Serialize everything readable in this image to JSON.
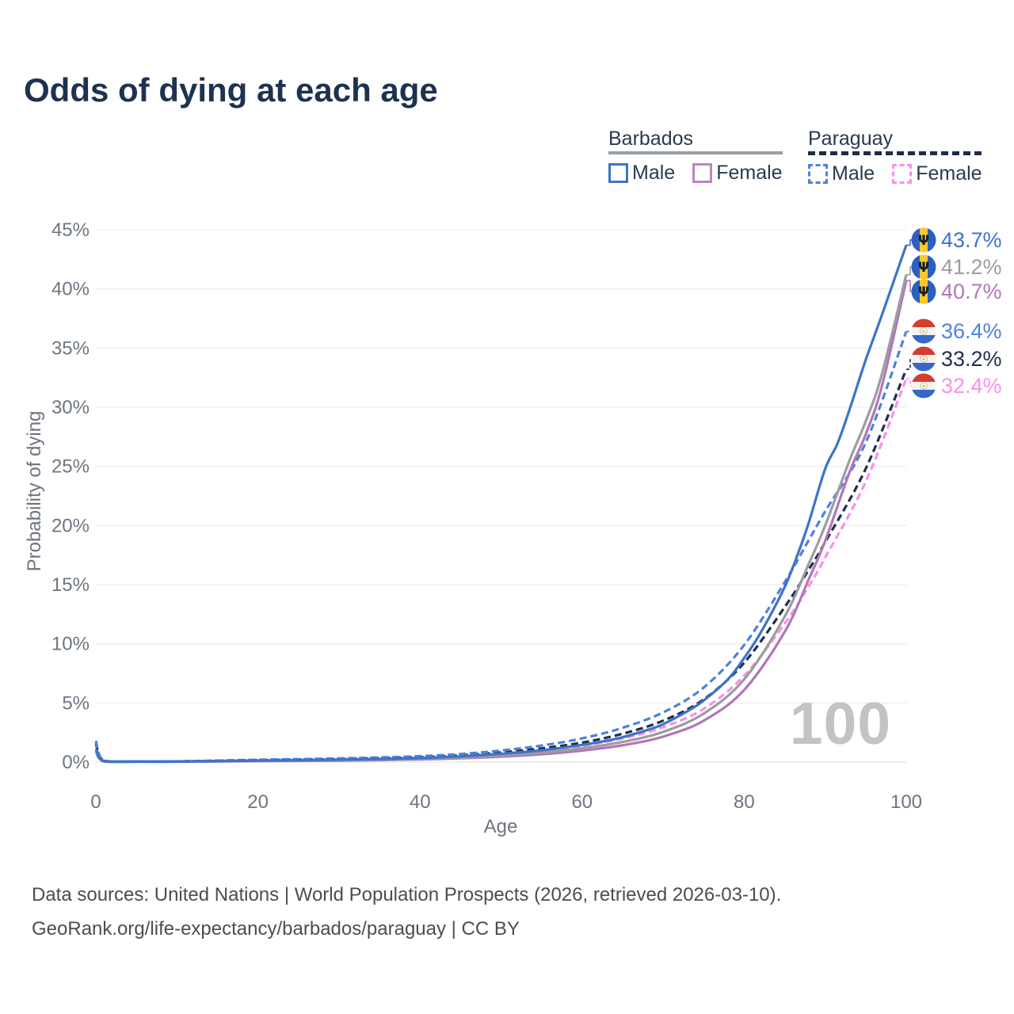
{
  "title": "Odds of dying at each age",
  "legend": {
    "groups": [
      {
        "label": "Barbados",
        "line_style": "solid",
        "underline_color": "#9aa0a6",
        "items": [
          {
            "label": "Male",
            "color": "#3e73c9",
            "dashed": false
          },
          {
            "label": "Female",
            "color": "#bb85c3",
            "dashed": false
          }
        ]
      },
      {
        "label": "Paraguay",
        "line_style": "dashed",
        "underline_color": "#1e2c49",
        "items": [
          {
            "label": "Male",
            "color": "#4d82dd",
            "dashed": true
          },
          {
            "label": "Female",
            "color": "#fc8eec",
            "dashed": true
          }
        ]
      }
    ]
  },
  "chart_data": {
    "type": "line",
    "title": "Odds of dying at each age",
    "xlabel": "Age",
    "ylabel": "Probability of dying",
    "xlim": [
      0,
      100
    ],
    "ylim": [
      0,
      45
    ],
    "xticks": [
      "0",
      "20",
      "40",
      "60",
      "80",
      "100"
    ],
    "xtick_values": [
      0,
      20,
      40,
      60,
      80,
      100
    ],
    "yticks": [
      "0%",
      "5%",
      "10%",
      "15%",
      "20%",
      "25%",
      "30%",
      "35%",
      "40%",
      "45%"
    ],
    "ytick_values": [
      0,
      5,
      10,
      15,
      20,
      25,
      30,
      35,
      40,
      45
    ],
    "grid": "horizontal",
    "legend_position": "top-right",
    "watermark": "100",
    "series": [
      {
        "name": "Paraguay Female",
        "id": "paraguay-female",
        "country": "Paraguay",
        "sex": "Female",
        "color": "#fc8eec",
        "dashed": true,
        "flag": "paraguay",
        "end_label": "32.4%",
        "points": [
          [
            0,
            1.45
          ],
          [
            1,
            0.1
          ],
          [
            5,
            0.05
          ],
          [
            10,
            0.05
          ],
          [
            15,
            0.09
          ],
          [
            20,
            0.13
          ],
          [
            25,
            0.16
          ],
          [
            30,
            0.2
          ],
          [
            35,
            0.26
          ],
          [
            40,
            0.34
          ],
          [
            45,
            0.47
          ],
          [
            50,
            0.68
          ],
          [
            55,
            0.97
          ],
          [
            60,
            1.38
          ],
          [
            65,
            2.0
          ],
          [
            70,
            2.95
          ],
          [
            75,
            4.5
          ],
          [
            80,
            7.3
          ],
          [
            85,
            11.7
          ],
          [
            88,
            14.9
          ],
          [
            90,
            17.3
          ],
          [
            95,
            23.7
          ],
          [
            100,
            32.4
          ]
        ]
      },
      {
        "name": "Paraguay",
        "id": "paraguay-combined",
        "country": "Paraguay",
        "sex": "Both",
        "color": "#203049",
        "dashed": true,
        "flag": "paraguay",
        "end_label": "33.2%",
        "points": [
          [
            0,
            1.6
          ],
          [
            1,
            0.11
          ],
          [
            5,
            0.05
          ],
          [
            10,
            0.06
          ],
          [
            15,
            0.11
          ],
          [
            20,
            0.16
          ],
          [
            25,
            0.21
          ],
          [
            30,
            0.25
          ],
          [
            35,
            0.32
          ],
          [
            40,
            0.41
          ],
          [
            45,
            0.57
          ],
          [
            50,
            0.82
          ],
          [
            55,
            1.16
          ],
          [
            60,
            1.65
          ],
          [
            65,
            2.4
          ],
          [
            70,
            3.5
          ],
          [
            75,
            5.3
          ],
          [
            80,
            8.4
          ],
          [
            85,
            13.1
          ],
          [
            88,
            16.3
          ],
          [
            90,
            18.6
          ],
          [
            95,
            24.8
          ],
          [
            100,
            33.2
          ]
        ]
      },
      {
        "name": "Paraguay Male",
        "id": "paraguay-male",
        "country": "Paraguay",
        "sex": "Male",
        "color": "#4d82dd",
        "dashed": true,
        "flag": "paraguay",
        "end_label": "36.4%",
        "points": [
          [
            0,
            1.8
          ],
          [
            1,
            0.12
          ],
          [
            5,
            0.06
          ],
          [
            10,
            0.07
          ],
          [
            15,
            0.13
          ],
          [
            20,
            0.2
          ],
          [
            25,
            0.25
          ],
          [
            30,
            0.31
          ],
          [
            35,
            0.39
          ],
          [
            40,
            0.5
          ],
          [
            45,
            0.68
          ],
          [
            50,
            0.98
          ],
          [
            55,
            1.4
          ],
          [
            60,
            2.0
          ],
          [
            65,
            2.9
          ],
          [
            70,
            4.2
          ],
          [
            75,
            6.3
          ],
          [
            80,
            9.9
          ],
          [
            85,
            15.2
          ],
          [
            88,
            18.8
          ],
          [
            90,
            21.2
          ],
          [
            95,
            27.0
          ],
          [
            100,
            36.4
          ]
        ]
      },
      {
        "name": "Barbados Female",
        "id": "barbados-female",
        "country": "Barbados",
        "sex": "Female",
        "color": "#b077b8",
        "dashed": false,
        "flag": "barbados",
        "end_label": "40.7%",
        "points": [
          [
            0,
            0.9
          ],
          [
            1,
            0.06
          ],
          [
            5,
            0.03
          ],
          [
            10,
            0.03
          ],
          [
            15,
            0.05
          ],
          [
            20,
            0.08
          ],
          [
            25,
            0.1
          ],
          [
            30,
            0.13
          ],
          [
            35,
            0.17
          ],
          [
            40,
            0.23
          ],
          [
            45,
            0.32
          ],
          [
            50,
            0.46
          ],
          [
            55,
            0.66
          ],
          [
            60,
            0.97
          ],
          [
            65,
            1.42
          ],
          [
            70,
            2.15
          ],
          [
            75,
            3.5
          ],
          [
            80,
            6.1
          ],
          [
            85,
            11.0
          ],
          [
            88,
            15.5
          ],
          [
            90,
            18.7
          ],
          [
            93,
            24.5
          ],
          [
            95,
            27.7
          ],
          [
            97,
            31.8
          ],
          [
            100,
            40.7
          ]
        ]
      },
      {
        "name": "Barbados",
        "id": "barbados-combined",
        "country": "Barbados",
        "sex": "Both",
        "color": "#9c9ca1",
        "dashed": false,
        "flag": "barbados",
        "end_label": "41.2%",
        "points": [
          [
            0,
            1.0
          ],
          [
            1,
            0.065
          ],
          [
            5,
            0.04
          ],
          [
            10,
            0.04
          ],
          [
            15,
            0.07
          ],
          [
            20,
            0.1
          ],
          [
            25,
            0.13
          ],
          [
            30,
            0.16
          ],
          [
            35,
            0.21
          ],
          [
            40,
            0.28
          ],
          [
            45,
            0.39
          ],
          [
            50,
            0.56
          ],
          [
            55,
            0.8
          ],
          [
            60,
            1.17
          ],
          [
            65,
            1.7
          ],
          [
            70,
            2.55
          ],
          [
            75,
            4.1
          ],
          [
            80,
            7.0
          ],
          [
            85,
            12.3
          ],
          [
            88,
            16.8
          ],
          [
            90,
            20.0
          ],
          [
            93,
            25.5
          ],
          [
            95,
            28.8
          ],
          [
            97,
            32.8
          ],
          [
            100,
            41.2
          ]
        ]
      },
      {
        "name": "Barbados Male",
        "id": "barbados-male",
        "country": "Barbados",
        "sex": "Male",
        "color": "#3e73c9",
        "dashed": false,
        "flag": "barbados",
        "end_label": "43.7%",
        "points": [
          [
            0,
            1.1
          ],
          [
            1,
            0.07
          ],
          [
            5,
            0.04
          ],
          [
            10,
            0.05
          ],
          [
            15,
            0.09
          ],
          [
            20,
            0.13
          ],
          [
            25,
            0.16
          ],
          [
            30,
            0.2
          ],
          [
            35,
            0.26
          ],
          [
            40,
            0.34
          ],
          [
            45,
            0.48
          ],
          [
            50,
            0.7
          ],
          [
            55,
            1.0
          ],
          [
            60,
            1.45
          ],
          [
            63,
            1.8
          ],
          [
            65,
            2.1
          ],
          [
            68,
            2.7
          ],
          [
            70,
            3.2
          ],
          [
            73,
            4.3
          ],
          [
            75,
            5.2
          ],
          [
            78,
            7.0
          ],
          [
            80,
            8.8
          ],
          [
            82,
            10.9
          ],
          [
            85,
            14.8
          ],
          [
            87,
            18.3
          ],
          [
            88,
            20.3
          ],
          [
            90,
            24.8
          ],
          [
            91.5,
            26.9
          ],
          [
            93,
            29.8
          ],
          [
            95,
            34.0
          ],
          [
            97,
            37.8
          ],
          [
            100,
            43.7
          ]
        ]
      }
    ]
  },
  "footer": {
    "line1": "Data sources: United Nations | World Population Prospects (2026, retrieved 2026-03-10).",
    "line2": "GeoRank.org/life-expectancy/barbados/paraguay | CC BY"
  }
}
